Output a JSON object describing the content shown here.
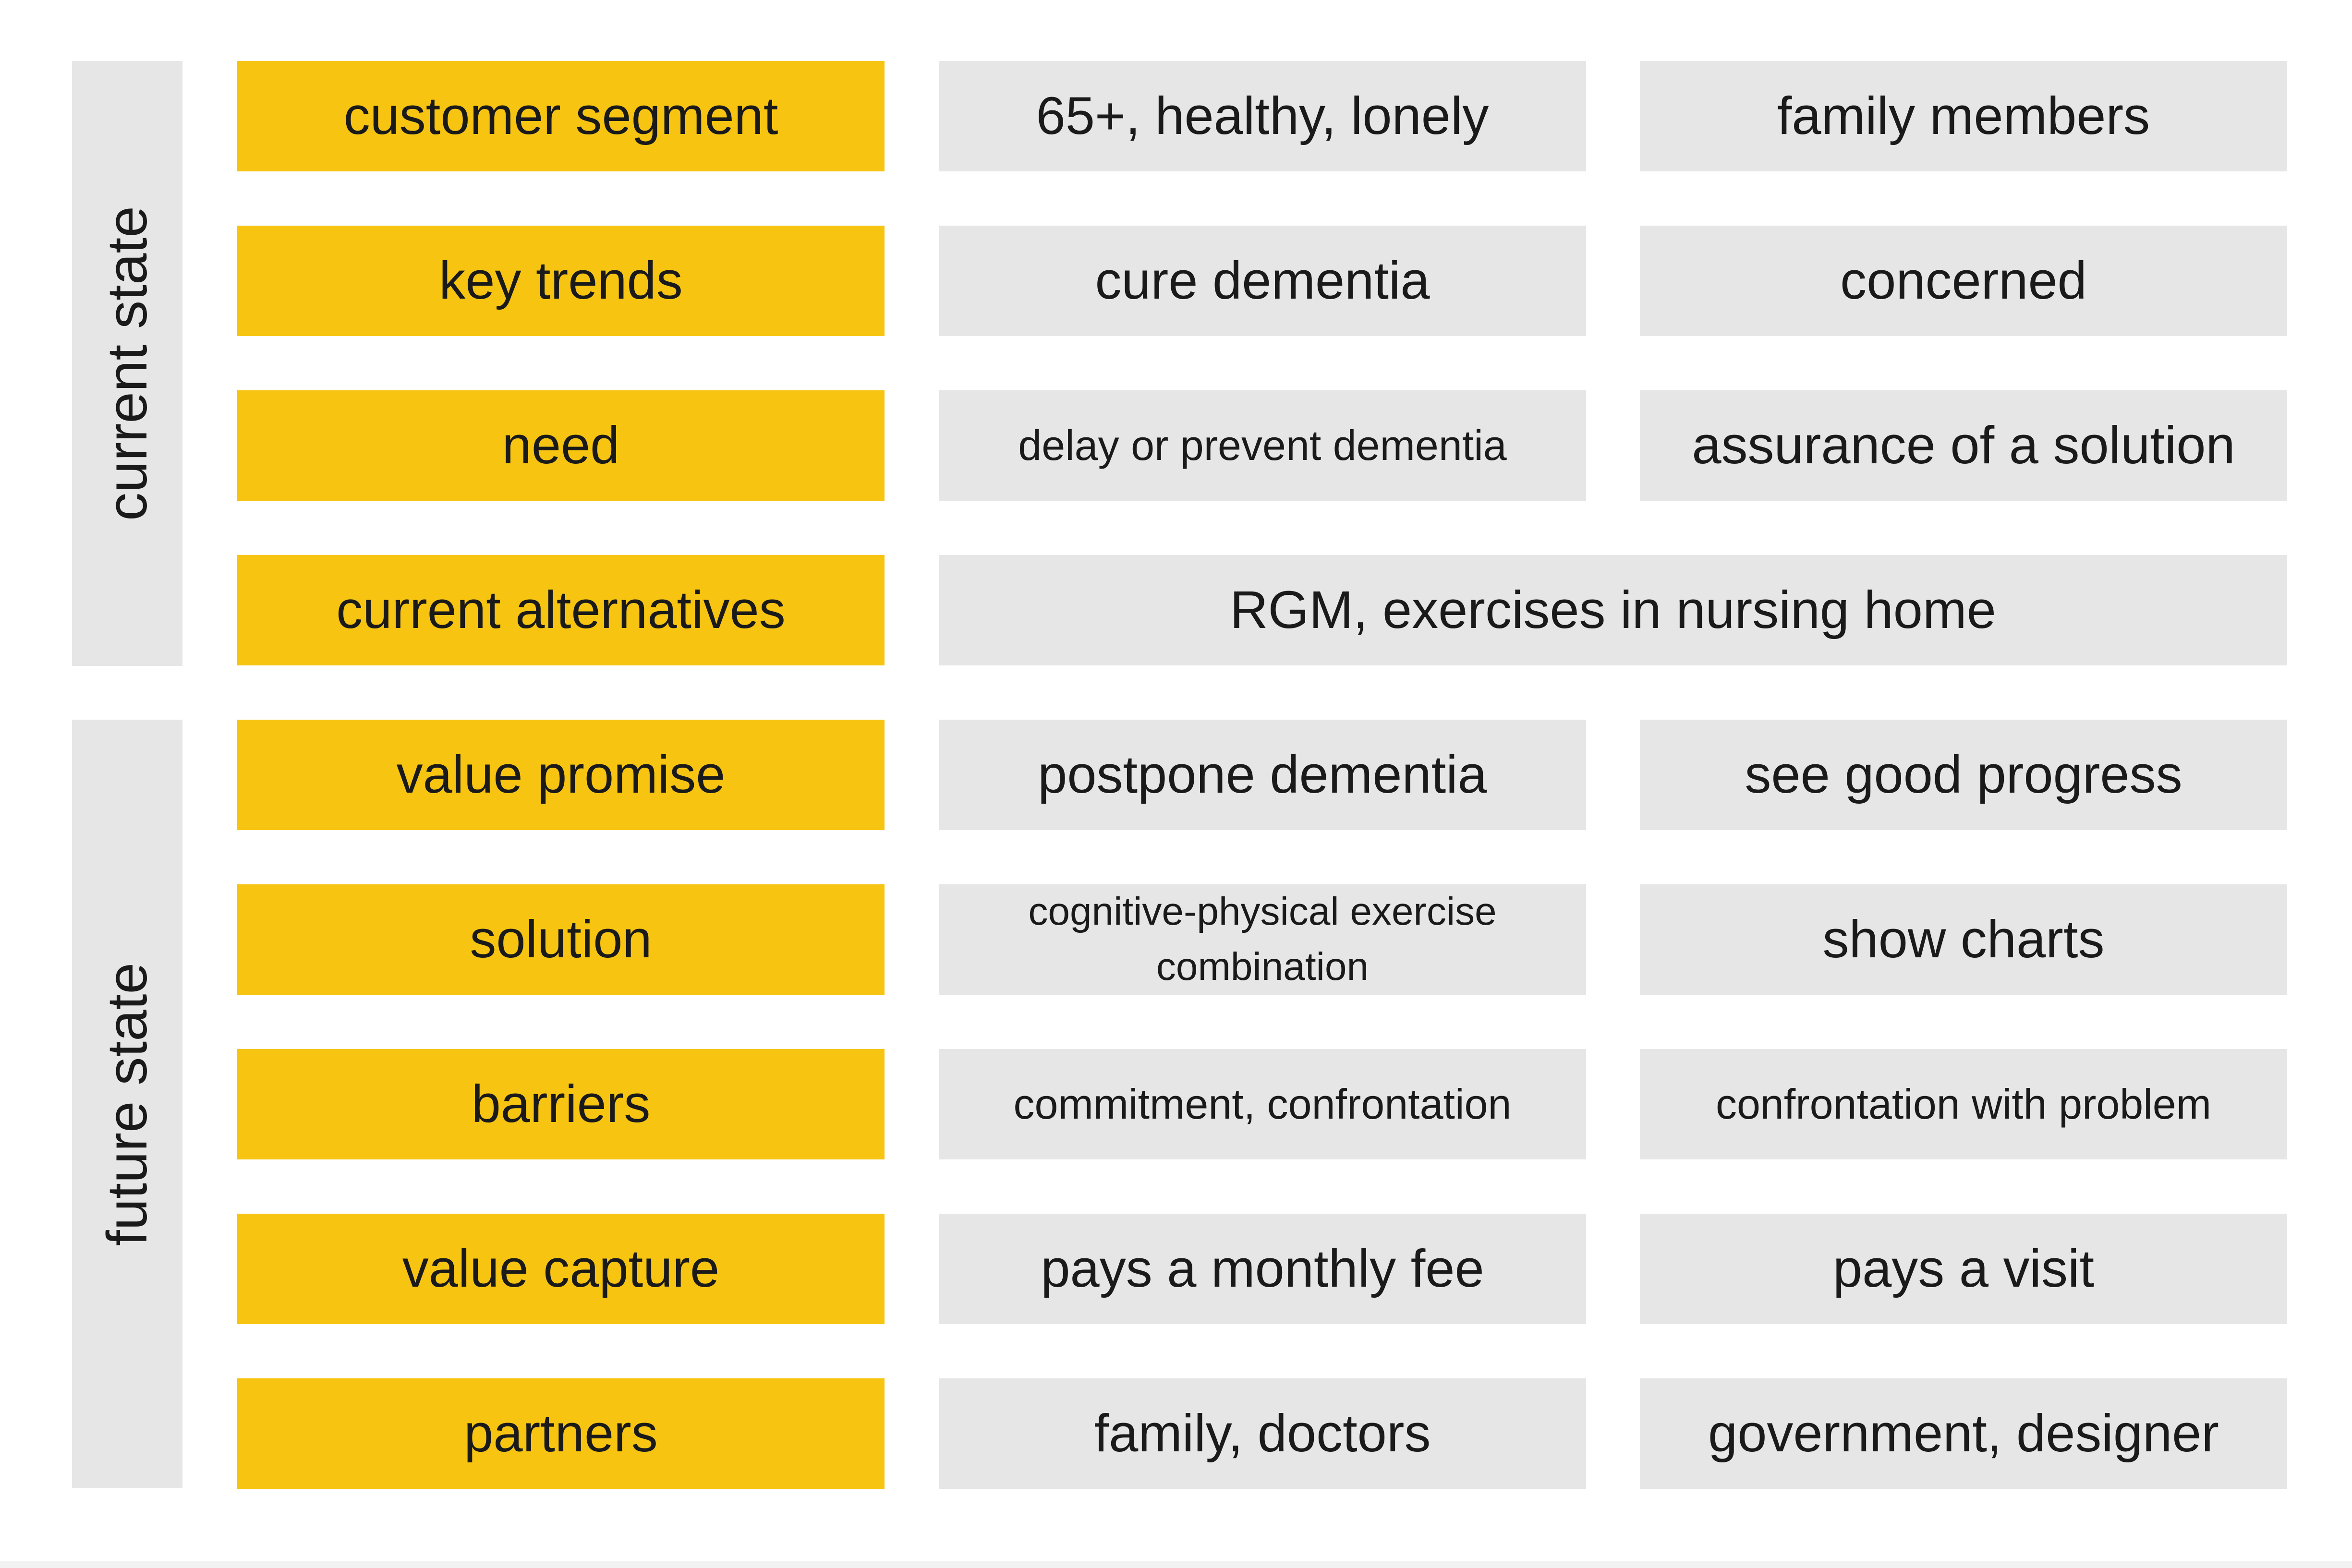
{
  "sections": {
    "current": "current state",
    "future": "future state"
  },
  "rows": [
    {
      "label": "customer segment",
      "col1": "65+, healthy, lonely",
      "col2": "family members"
    },
    {
      "label": "key trends",
      "col1": "cure dementia",
      "col2": "concerned"
    },
    {
      "label": "need",
      "col1": "delay or prevent dementia",
      "col2": "assurance of a solution"
    },
    {
      "label": "current alternatives",
      "span": "RGM, exercises in nursing home"
    },
    {
      "label": "value promise",
      "col1": "postpone dementia",
      "col2": "see good progress"
    },
    {
      "label": "solution",
      "col1": "cognitive-physical exercise combination",
      "col2": "show charts"
    },
    {
      "label": "barriers",
      "col1": "commitment, confrontation",
      "col2": "confrontation with problem"
    },
    {
      "label": "value capture",
      "col1": "pays a monthly fee",
      "col2": "pays a visit"
    },
    {
      "label": "partners",
      "col1": "family, doctors",
      "col2": "government, designer"
    }
  ],
  "colors": {
    "label_fill": "#f7c511",
    "cell_fill": "#e6e6e6",
    "text": "#1a1a1a"
  }
}
